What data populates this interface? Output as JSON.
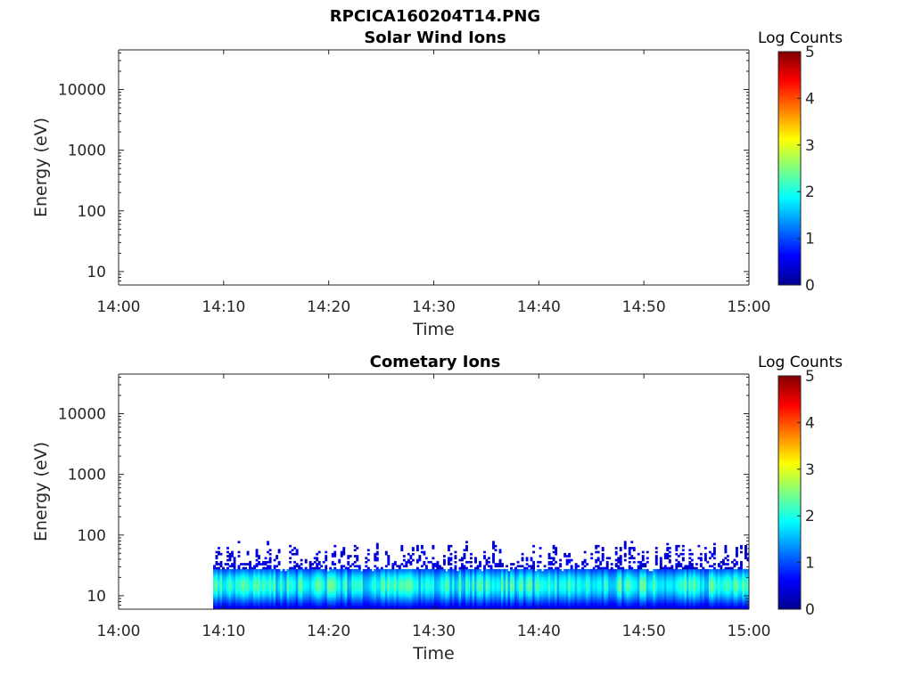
{
  "figure": {
    "title": "RPCICA160204T14.PNG"
  },
  "chart_data": [
    {
      "type": "heatmap",
      "title": "Solar Wind Ions",
      "xlabel": "Time",
      "ylabel": "Energy (eV)",
      "x_ticks": [
        "14:00",
        "14:10",
        "14:20",
        "14:30",
        "14:40",
        "14:50",
        "15:00"
      ],
      "xlim": [
        "14:00",
        "15:00"
      ],
      "y_scale": "log",
      "y_ticks": [
        "10",
        "100",
        "1000",
        "10000"
      ],
      "ylim": [
        6,
        45000
      ],
      "colorbar": {
        "label": "Log Counts",
        "range": [
          0,
          5
        ],
        "ticks": [
          "0",
          "1",
          "2",
          "3",
          "4",
          "5"
        ],
        "colormap": "jet"
      },
      "data_description": "",
      "regions": []
    },
    {
      "type": "heatmap",
      "title": "Cometary Ions",
      "xlabel": "Time",
      "ylabel": "Energy (eV)",
      "x_ticks": [
        "14:00",
        "14:10",
        "14:20",
        "14:30",
        "14:40",
        "14:50",
        "15:00"
      ],
      "xlim": [
        "14:00",
        "15:00"
      ],
      "y_scale": "log",
      "y_ticks": [
        "10",
        "100",
        "1000",
        "10000"
      ],
      "ylim": [
        6,
        45000
      ],
      "colorbar": {
        "label": "Log Counts",
        "range": [
          0,
          5
        ],
        "ticks": [
          "0",
          "1",
          "2",
          "3",
          "4",
          "5"
        ],
        "colormap": "jet"
      },
      "regions": [
        {
          "t_start": "14:09",
          "t_end": "15:00",
          "e_min": 6,
          "e_max": 80,
          "peak_energy": 15,
          "peak_log_counts": 2.0
        }
      ]
    }
  ]
}
